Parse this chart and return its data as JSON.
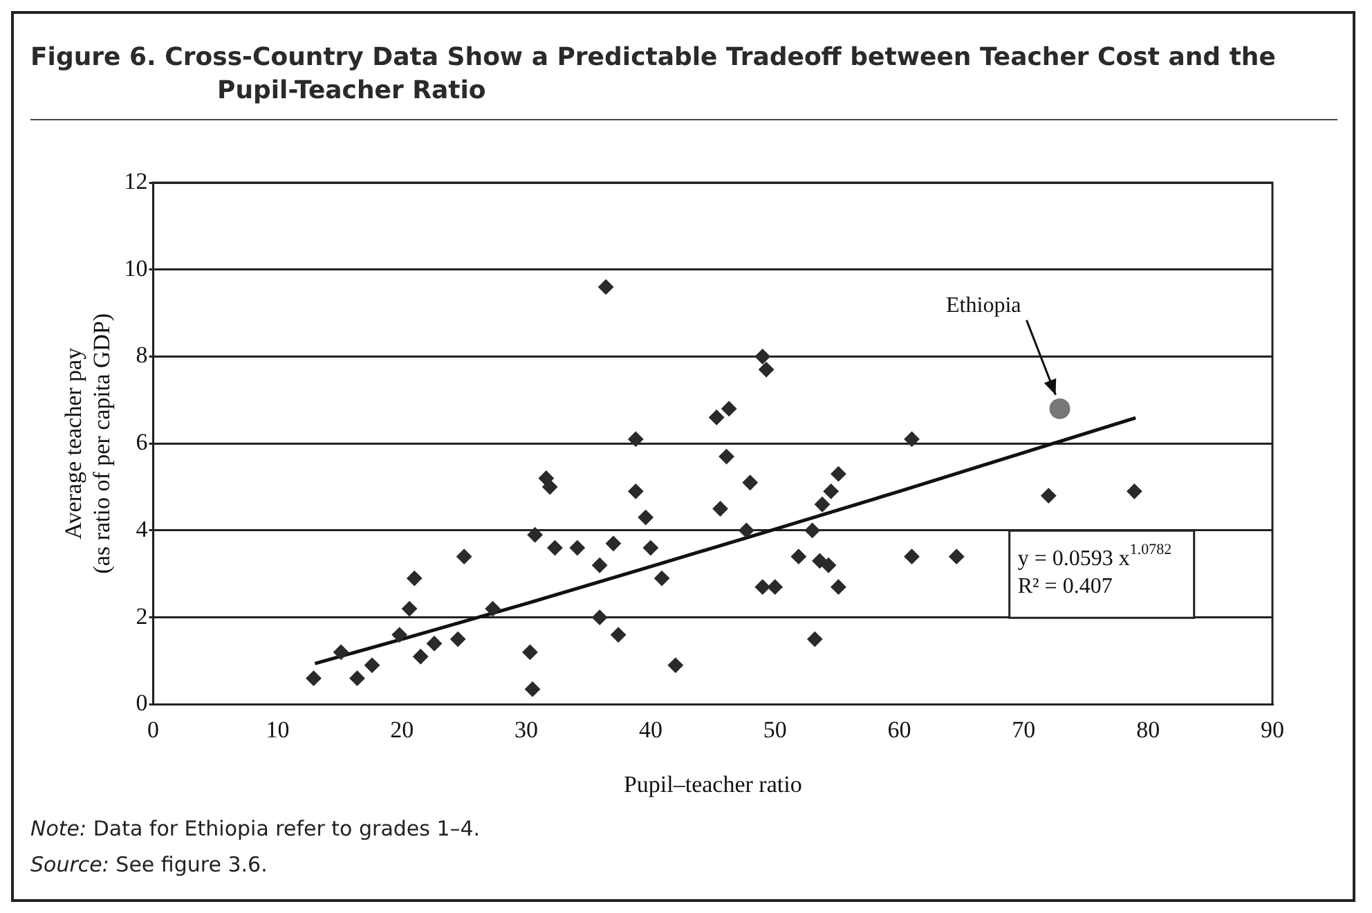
{
  "chart_data": {
    "type": "scatter",
    "title": "Figure 6. Cross-Country Data Show a Predictable Tradeoff between Teacher Cost and the Pupil-Teacher Ratio",
    "xlabel": "Pupil–teacher ratio",
    "ylabel": "Average teacher pay (as ratio of per capita GDP)",
    "xlim": [
      0,
      90
    ],
    "xticks": [
      0,
      10,
      20,
      30,
      40,
      50,
      60,
      70,
      80,
      90
    ],
    "ylim": [
      0,
      12
    ],
    "yticks": [
      0,
      2,
      4,
      6,
      8,
      10,
      12
    ],
    "grid": "y",
    "legend": false,
    "marker": "diamond",
    "series": [
      {
        "color": "#2a2a2a",
        "x": [
          12.9,
          15.1,
          16.4,
          17.6,
          19.8,
          20.6,
          21.0,
          21.5,
          22.6,
          24.5,
          25.0,
          27.3,
          30.3,
          30.5,
          30.7,
          31.6,
          31.9,
          32.3,
          34.1,
          35.9,
          35.9,
          36.4,
          37.0,
          37.4,
          38.8,
          38.8,
          39.6,
          40.0,
          40.9,
          42.0,
          45.3,
          45.6,
          46.1,
          46.3,
          47.7,
          48.0,
          49.0,
          49.3,
          49.0,
          50.0,
          51.9,
          53.0,
          53.2,
          53.6,
          53.8,
          54.3,
          54.5,
          55.1,
          55.1,
          61.0,
          61.0,
          64.6,
          72.0,
          78.9
        ],
        "values": [
          0.6,
          1.2,
          0.6,
          0.9,
          1.6,
          2.2,
          2.9,
          1.1,
          1.4,
          1.5,
          3.4,
          2.2,
          1.2,
          0.35,
          3.9,
          5.2,
          5.0,
          3.6,
          3.6,
          3.2,
          2.0,
          9.6,
          3.7,
          1.6,
          6.1,
          4.9,
          4.3,
          3.6,
          2.9,
          0.9,
          6.6,
          4.5,
          5.7,
          6.8,
          4.0,
          5.1,
          8.0,
          7.7,
          2.7,
          2.7,
          3.4,
          4.0,
          1.5,
          3.3,
          4.6,
          3.2,
          4.9,
          2.7,
          5.3,
          6.1,
          3.4,
          3.4,
          4.8,
          4.9
        ]
      },
      {
        "name": "Ethiopia",
        "color": "#777777",
        "marker": "circle",
        "x": [
          72.9
        ],
        "values": [
          6.8
        ]
      },
      {
        "type": "line",
        "color": "#111111",
        "marker": "none",
        "x": [
          13,
          20,
          30,
          40,
          50,
          60,
          70,
          79
        ],
        "values": [
          0.94,
          1.5,
          2.32,
          3.17,
          4.03,
          4.9,
          5.79,
          6.59
        ]
      }
    ],
    "annotations": [
      "y = 0.0593 x$^{1.0782}$\nR² = 0.407",
      "Note: Data for Ethiopia refer to grades 1–4.",
      "Source: See figure 3.6."
    ]
  }
}
